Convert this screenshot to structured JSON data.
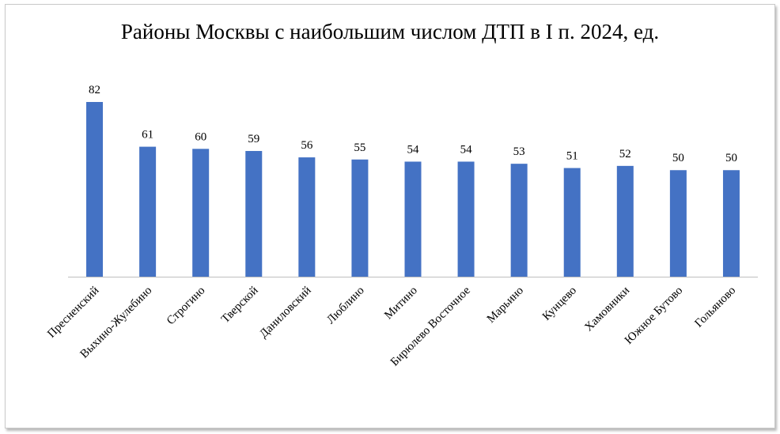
{
  "chart_data": {
    "type": "bar",
    "title": "Районы Москвы с наибольшим числом ДТП в I п. 2024, ед.",
    "categories": [
      "Пресненский",
      "Выхино-Жулебино",
      "Строгино",
      "Тверской",
      "Даниловский",
      "Люблино",
      "Митино",
      "Бирюлево Восточное",
      "Марьино",
      "Кунцево",
      "Хамовники",
      "Южное Бутово",
      "Гольяново"
    ],
    "values": [
      82,
      61,
      60,
      59,
      56,
      55,
      54,
      54,
      53,
      51,
      52,
      50,
      50
    ],
    "xlabel": "",
    "ylabel": "",
    "ylim": [
      0,
      90
    ],
    "grid": false,
    "legend": "none",
    "bar_color": "#4472C4",
    "axis_color": "#bfbfbf",
    "data_labels": true
  }
}
